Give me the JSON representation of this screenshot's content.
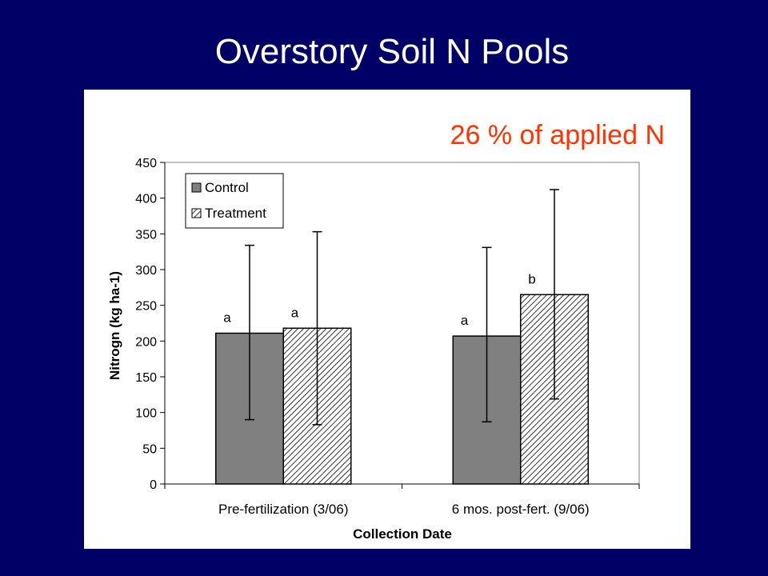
{
  "slide": {
    "title": "Overstory Soil N Pools"
  },
  "colors": {
    "background": "#000066",
    "control": "#808080",
    "treatment_hatch": "#000000",
    "annotation": "#ff3300"
  },
  "chart_data": {
    "type": "bar",
    "title": "",
    "annotation": "26 % of applied N",
    "xlabel": "Collection Date",
    "ylabel": "Nitrogn (kg ha-1)",
    "ylim": [
      0,
      450
    ],
    "yticks": [
      0,
      50,
      100,
      150,
      200,
      250,
      300,
      350,
      400,
      450
    ],
    "categories": [
      "Pre-fertilization (3/06)",
      "6 mos. post-fert. (9/06)"
    ],
    "legend_position": "top-left",
    "grid": false,
    "series": [
      {
        "name": "Control",
        "pattern": "solid-gray",
        "values": [
          211,
          207
        ],
        "error_low": [
          90,
          87
        ],
        "error_high": [
          334,
          331
        ],
        "significance": [
          "a",
          "a"
        ]
      },
      {
        "name": "Treatment",
        "pattern": "diagonal-hatch",
        "values": [
          218,
          265
        ],
        "error_low": [
          83,
          119
        ],
        "error_high": [
          353,
          412
        ],
        "significance": [
          "a",
          "b"
        ]
      }
    ]
  }
}
